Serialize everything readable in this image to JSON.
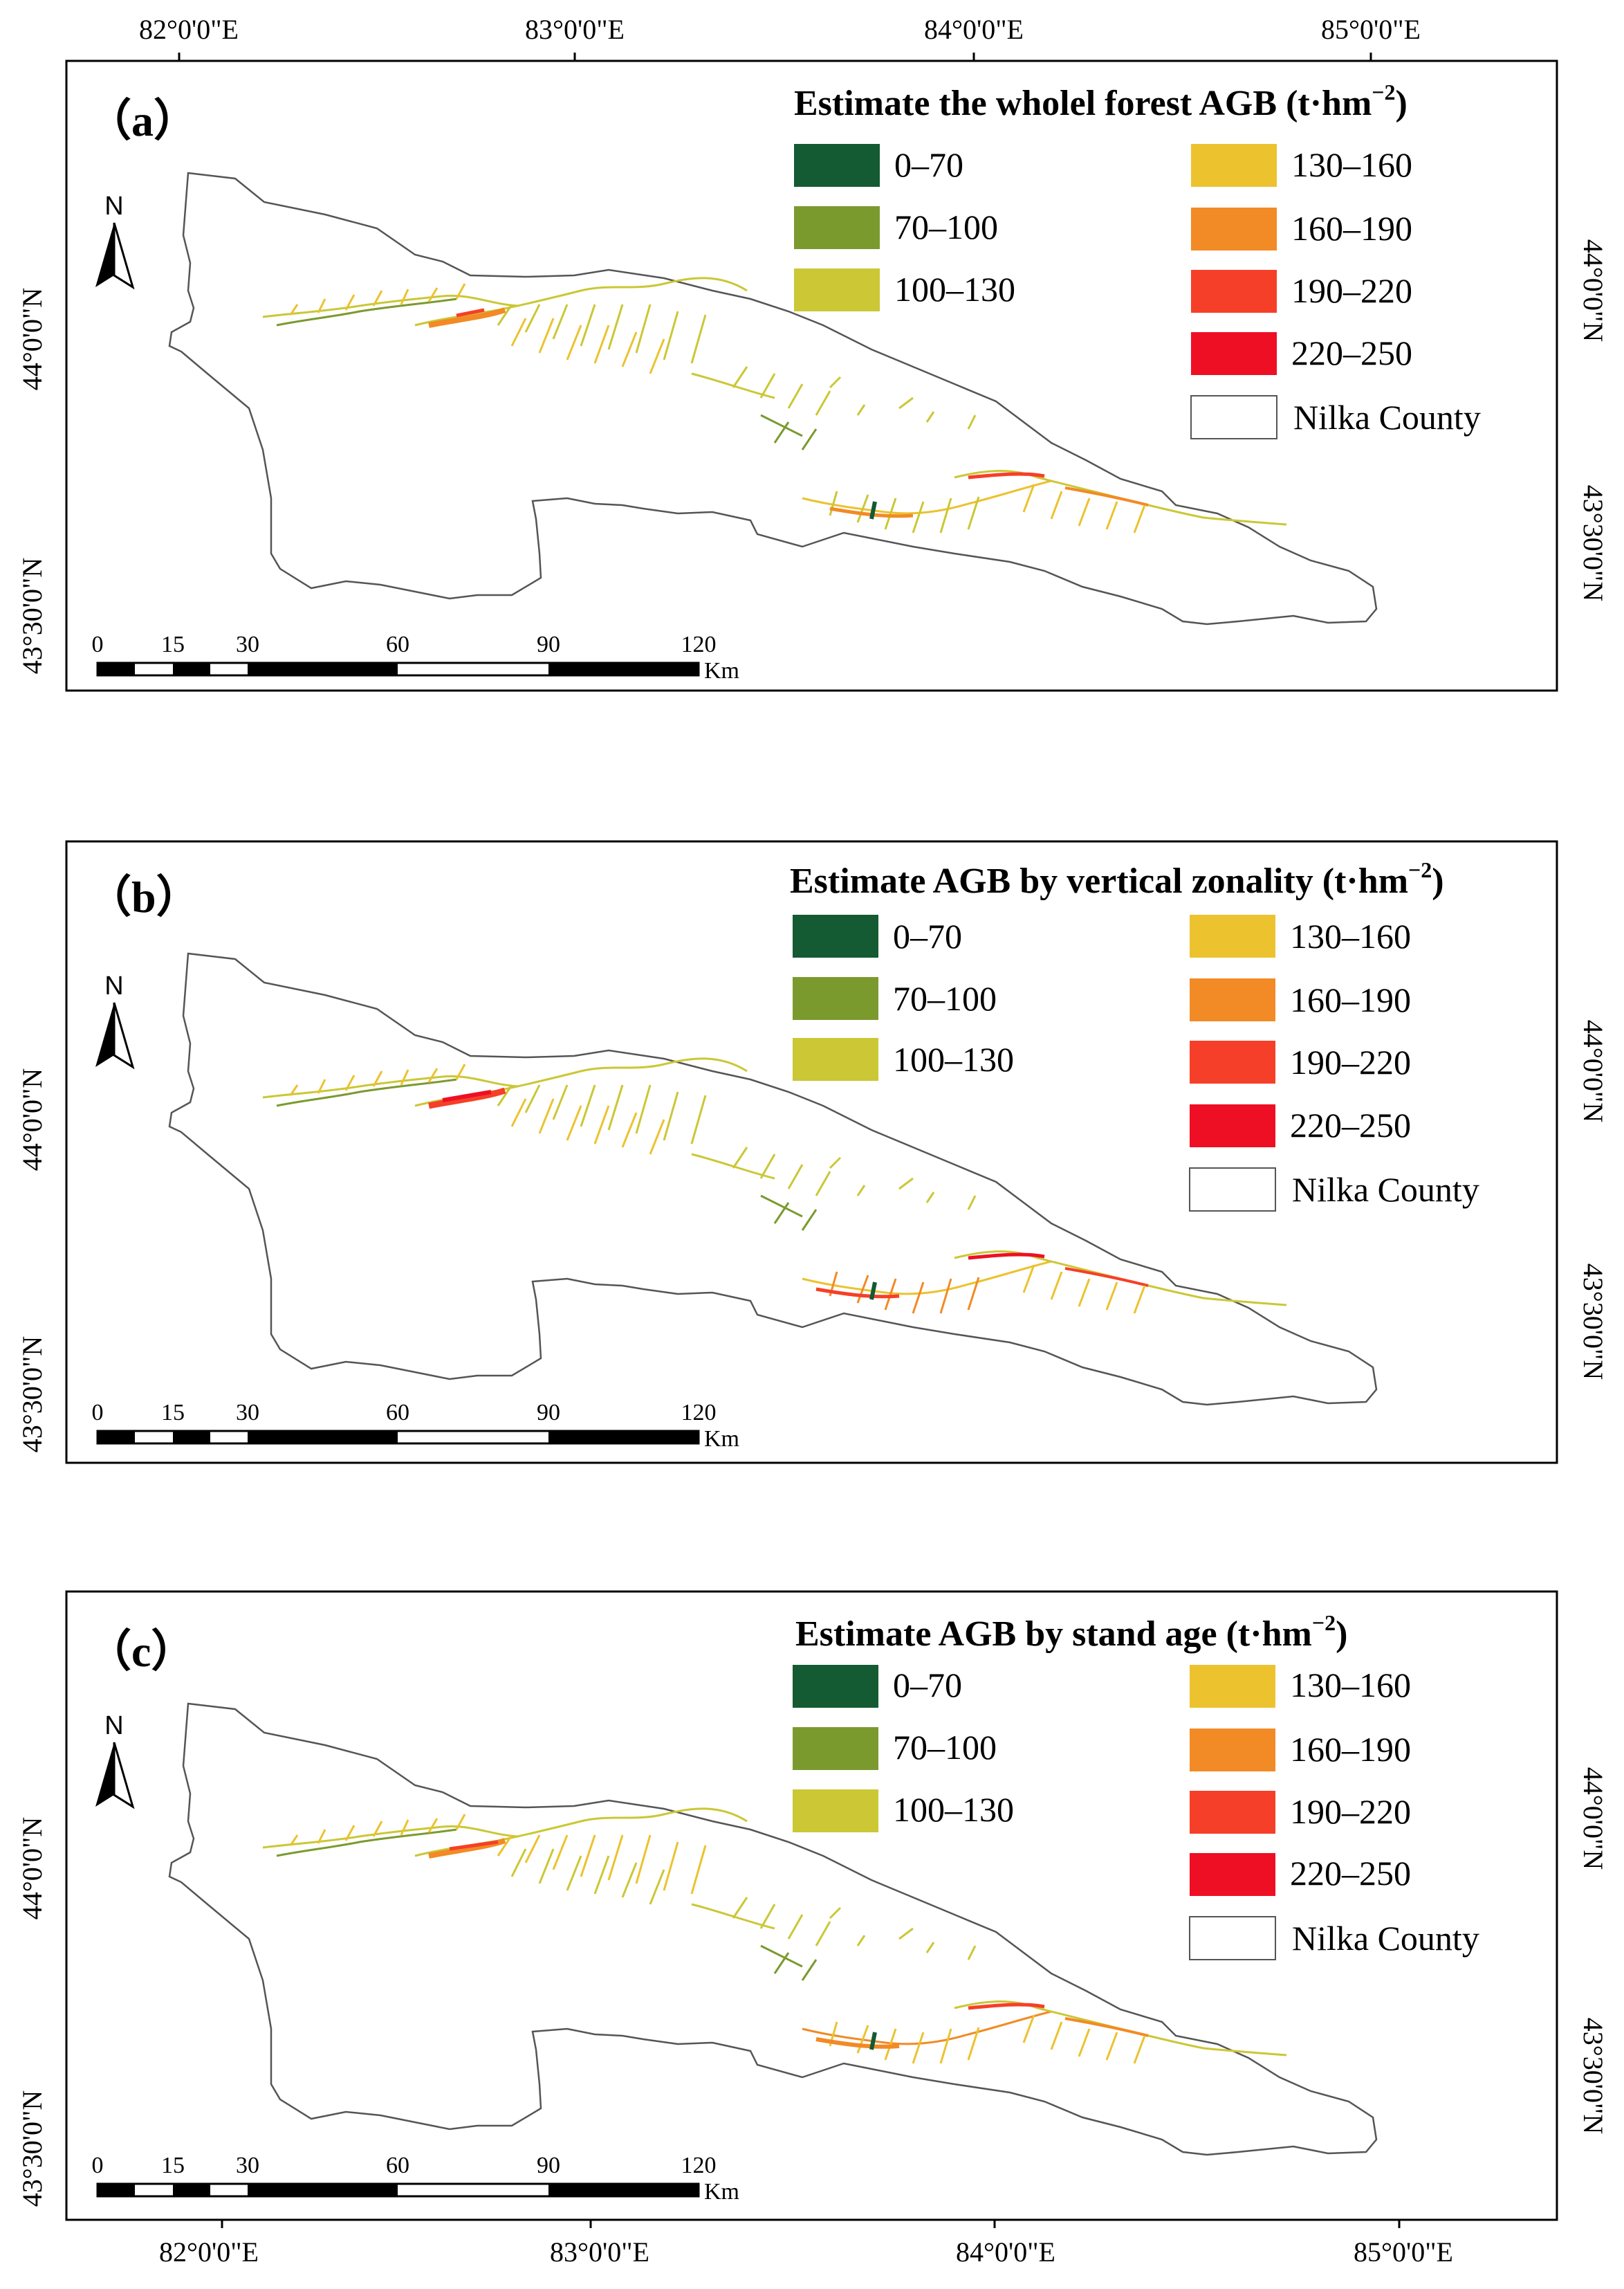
{
  "figure": {
    "top_longitudes": [
      "82°0'0\"E",
      "83°0'0\"E",
      "84°0'0\"E",
      "85°0'0\"E"
    ],
    "bottom_longitudes": [
      "82°0'0\"E",
      "83°0'0\"E",
      "84°0'0\"E",
      "85°0'0\"E"
    ],
    "lat_labels": [
      "44°0'0\"N",
      "43°30'0\"N"
    ],
    "north_label": "N",
    "scale_ticks": [
      "0",
      "15",
      "30",
      "60",
      "90",
      "120"
    ],
    "scale_unit": "Km"
  },
  "legend": {
    "classes": [
      {
        "label": "0–70",
        "color": "#145a32"
      },
      {
        "label": "70–100",
        "color": "#7b9a2e"
      },
      {
        "label": "100–130",
        "color": "#cbc735"
      },
      {
        "label": "130–160",
        "color": "#ecc22f"
      },
      {
        "label": "160–190",
        "color": "#f28a25"
      },
      {
        "label": "190–220",
        "color": "#f63f28"
      },
      {
        "label": "220–250",
        "color": "#ee0f24"
      }
    ],
    "boundary_label": "Nilka County"
  },
  "panels": [
    {
      "id": "a",
      "label": "（a）",
      "title": "Estimate the wholel forest AGB (t·hm",
      "title_sup": "−2",
      "title_end": ")"
    },
    {
      "id": "b",
      "label": "（b）",
      "title": "Estimate AGB by vertical zonality (t·hm",
      "title_sup": "−2",
      "title_end": ")"
    },
    {
      "id": "c",
      "label": "（c）",
      "title": "Estimate AGB by stand age (t·hm",
      "title_sup": "−2",
      "title_end": ")"
    }
  ]
}
